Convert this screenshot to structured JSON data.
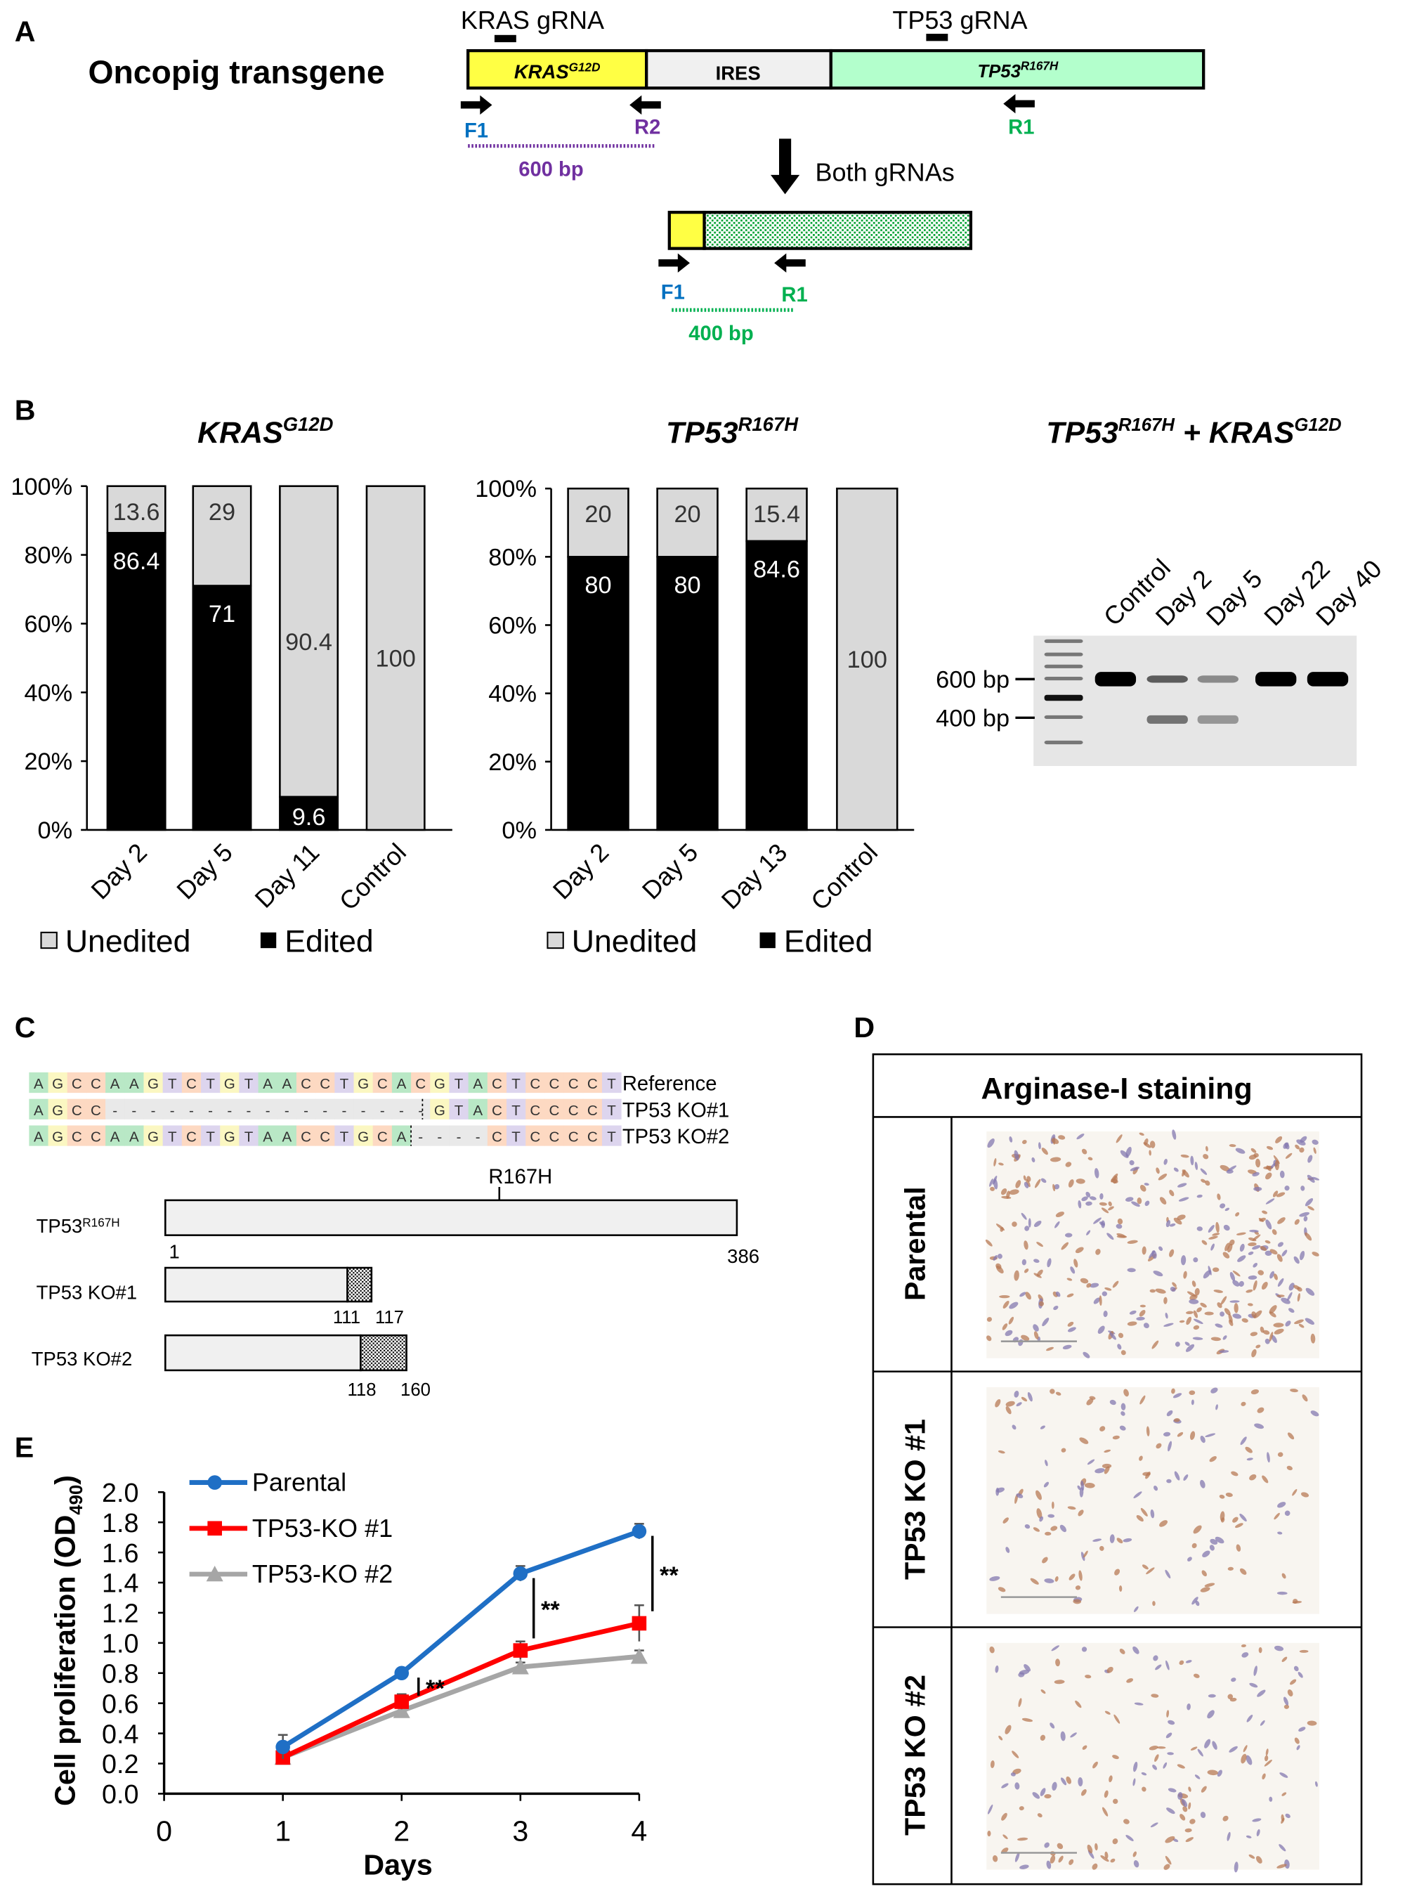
{
  "panel_labels": {
    "a": "A",
    "b": "B",
    "c": "C",
    "d": "D",
    "e": "E"
  },
  "panel_a": {
    "title": "Oncopig transgene",
    "kras_grna": "KRAS gRNA",
    "tp53_grna": "TP53 gRNA",
    "segments": [
      {
        "base": "KRAS",
        "sup": "G12D",
        "color": "#ffff44"
      },
      {
        "base": "IRES",
        "sup": "",
        "color": "#f0f0f0"
      },
      {
        "base": "TP53",
        "sup": "R167H",
        "color": "#b3ffcc"
      }
    ],
    "primers": {
      "f1": "F1",
      "r2": "R2",
      "r1": "R1"
    },
    "primer_colors": {
      "f1": "#0070c0",
      "r2": "#7030a0",
      "r1": "#00b050"
    },
    "amplicon_full": "600 bp",
    "arrow_label": "Both gRNAs",
    "amplicon_edited": "400 bp"
  },
  "chart_data": [
    {
      "type": "bar",
      "stacked": true,
      "title": {
        "base": "KRAS",
        "sup": "G12D"
      },
      "categories": [
        "Day 2",
        "Day 5",
        "Day 11",
        "Control"
      ],
      "series": [
        {
          "name": "Edited",
          "color": "#000000",
          "values": [
            86.4,
            71,
            9.6,
            0
          ]
        },
        {
          "name": "Unedited",
          "color": "#d9d9d9",
          "values": [
            13.6,
            29,
            90.4,
            100
          ]
        }
      ],
      "data_labels": {
        "Edited": [
          "86.4",
          "71",
          "9.6",
          ""
        ],
        "Unedited": [
          "13.6",
          "29",
          "90.4",
          "100"
        ]
      },
      "yticks": [
        "0%",
        "20%",
        "40%",
        "60%",
        "80%",
        "100%"
      ],
      "ylim": [
        0,
        100
      ],
      "legend": {
        "position": "bottom",
        "items": [
          "Unedited",
          "Edited"
        ]
      }
    },
    {
      "type": "bar",
      "stacked": true,
      "title": {
        "base": "TP53",
        "sup": "R167H"
      },
      "categories": [
        "Day 2",
        "Day 5",
        "Day 13",
        "Control"
      ],
      "series": [
        {
          "name": "Edited",
          "color": "#000000",
          "values": [
            80,
            80,
            84.6,
            0
          ]
        },
        {
          "name": "Unedited",
          "color": "#d9d9d9",
          "values": [
            20,
            20,
            15.4,
            100
          ]
        }
      ],
      "data_labels": {
        "Edited": [
          "80",
          "80",
          "84.6",
          ""
        ],
        "Unedited": [
          "20",
          "20",
          "15.4",
          "100"
        ]
      },
      "yticks": [
        "0%",
        "20%",
        "40%",
        "60%",
        "80%",
        "100%"
      ],
      "ylim": [
        0,
        100
      ],
      "legend": {
        "position": "bottom",
        "items": [
          "Unedited",
          "Edited"
        ]
      }
    },
    {
      "type": "line",
      "xlabel": "Days",
      "ylabel": {
        "base": "Cell proliferation (OD",
        "sub": "490",
        "end": ")"
      },
      "x": [
        1,
        2,
        3,
        4
      ],
      "xticks": [
        "0",
        "1",
        "2",
        "3",
        "4"
      ],
      "yticks": [
        "0.0",
        "0.2",
        "0.4",
        "0.6",
        "0.8",
        "1.0",
        "1.2",
        "1.4",
        "1.6",
        "1.8",
        "2.0"
      ],
      "xlim": [
        0,
        4
      ],
      "ylim": [
        0,
        2.0
      ],
      "series": [
        {
          "name": "Parental",
          "color": "#1f6fc5",
          "marker": "circle",
          "values": [
            0.31,
            0.8,
            1.46,
            1.74
          ],
          "error": [
            0.08,
            0.02,
            0.05,
            0.05
          ]
        },
        {
          "name": "TP53-KO #1",
          "color": "#ff0000",
          "marker": "square",
          "values": [
            0.24,
            0.61,
            0.95,
            1.13
          ],
          "error": [
            0.03,
            0.05,
            0.06,
            0.12
          ]
        },
        {
          "name": "TP53-KO #2",
          "color": "#a6a6a6",
          "marker": "triangle",
          "values": [
            0.24,
            0.55,
            0.84,
            0.91
          ],
          "error": [
            0.02,
            0.03,
            0.03,
            0.04
          ]
        }
      ],
      "significance": [
        {
          "day": 2,
          "label": "**"
        },
        {
          "day": 3,
          "label": "**"
        },
        {
          "day": 4,
          "label": "**"
        }
      ],
      "legend": {
        "position": "top-left"
      }
    }
  ],
  "gel": {
    "title": {
      "base1": "TP53",
      "sup1": "R167H",
      "mid": " + ",
      "base2": "KRAS",
      "sup2": "G12D"
    },
    "lanes": [
      "Control",
      "Day 2",
      "Day 5",
      "Day 22",
      "Day 40"
    ],
    "markers": [
      "600 bp",
      "400 bp"
    ]
  },
  "panel_c": {
    "sequences": [
      {
        "label": "Reference",
        "seq": "AGCCAAGTCTGTAACCTGCACGTACTCCCCT"
      },
      {
        "label": "TP53 KO#1",
        "seq": "AGCC-----------------GTACTCCCCT"
      },
      {
        "label": "TP53 KO#2",
        "seq": "AGCCAAGTCTGTAACCTGCA----CTCCCCT"
      }
    ],
    "base_colors": {
      "A": "#b9e8c6",
      "G": "#fbf7c2",
      "C": "#fdd9c2",
      "T": "#ddd5ee",
      "-": "#e9e9e9"
    },
    "mutation_label": "R167H",
    "proteins": [
      {
        "label": "TP53",
        "sup": "R167H",
        "start": "1",
        "end": "386"
      },
      {
        "label": "TP53 KO#1",
        "sup": "",
        "start": "111",
        "end": "117"
      },
      {
        "label": "TP53 KO#2",
        "sup": "",
        "start": "118",
        "end": "160"
      }
    ]
  },
  "panel_d": {
    "header": "Arginase-I staining",
    "rows": [
      "Parental",
      "TP53 KO #1",
      "TP53 KO #2"
    ]
  }
}
